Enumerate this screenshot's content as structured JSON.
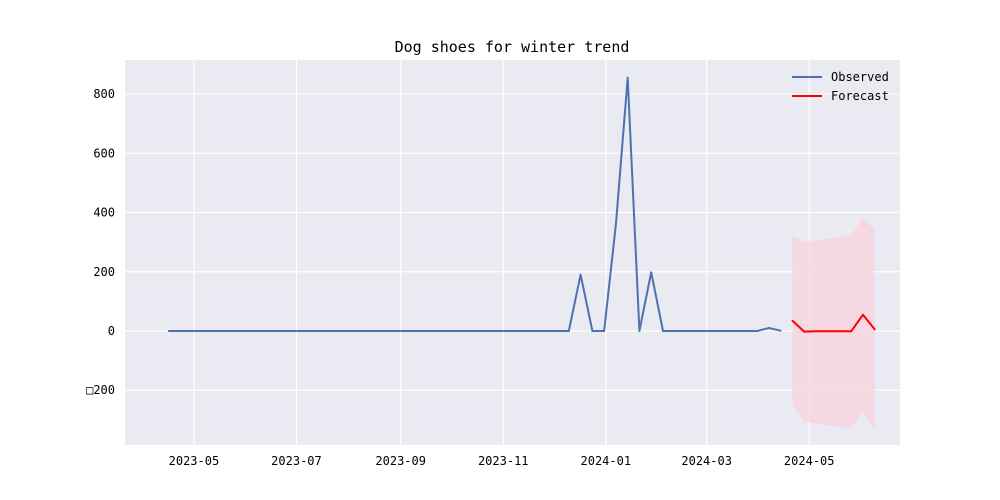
{
  "chart_data": {
    "type": "line",
    "title": "Dog shoes for winter trend",
    "xlabel": "",
    "ylabel": "",
    "x_type": "date",
    "xlim": [
      "2023-03-21",
      "2024-06-24"
    ],
    "ylim": [
      -385,
      915
    ],
    "x_ticks": [
      {
        "date": "2023-05-01",
        "label": "2023-05"
      },
      {
        "date": "2023-07-01",
        "label": "2023-07"
      },
      {
        "date": "2023-09-01",
        "label": "2023-09"
      },
      {
        "date": "2023-11-01",
        "label": "2023-11"
      },
      {
        "date": "2024-01-01",
        "label": "2024-01"
      },
      {
        "date": "2024-03-01",
        "label": "2024-03"
      },
      {
        "date": "2024-05-01",
        "label": "2024-05"
      }
    ],
    "y_ticks": [
      {
        "value": -200,
        "label": "□200"
      },
      {
        "value": 0,
        "label": "0"
      },
      {
        "value": 200,
        "label": "200"
      },
      {
        "value": 400,
        "label": "400"
      },
      {
        "value": 600,
        "label": "600"
      },
      {
        "value": 800,
        "label": "800"
      }
    ],
    "grid": true,
    "legend": {
      "position": "top-right"
    },
    "series": [
      {
        "name": "Observed",
        "color": "#4c72b0",
        "points": [
          {
            "x": "2023-04-16",
            "y": 0
          },
          {
            "x": "2023-04-23",
            "y": 0
          },
          {
            "x": "2023-04-30",
            "y": 0
          },
          {
            "x": "2023-05-07",
            "y": 0
          },
          {
            "x": "2023-05-14",
            "y": 0
          },
          {
            "x": "2023-05-21",
            "y": 0
          },
          {
            "x": "2023-05-28",
            "y": 0
          },
          {
            "x": "2023-06-04",
            "y": 0
          },
          {
            "x": "2023-06-11",
            "y": 0
          },
          {
            "x": "2023-06-18",
            "y": 0
          },
          {
            "x": "2023-06-25",
            "y": 0
          },
          {
            "x": "2023-07-02",
            "y": 0
          },
          {
            "x": "2023-07-09",
            "y": 0
          },
          {
            "x": "2023-07-16",
            "y": 0
          },
          {
            "x": "2023-07-23",
            "y": 0
          },
          {
            "x": "2023-07-30",
            "y": 0
          },
          {
            "x": "2023-08-06",
            "y": 0
          },
          {
            "x": "2023-08-13",
            "y": 0
          },
          {
            "x": "2023-08-20",
            "y": 0
          },
          {
            "x": "2023-08-27",
            "y": 0
          },
          {
            "x": "2023-09-03",
            "y": 0
          },
          {
            "x": "2023-09-10",
            "y": 0
          },
          {
            "x": "2023-09-17",
            "y": 0
          },
          {
            "x": "2023-09-24",
            "y": 0
          },
          {
            "x": "2023-10-01",
            "y": 0
          },
          {
            "x": "2023-10-08",
            "y": 0
          },
          {
            "x": "2023-10-15",
            "y": 0
          },
          {
            "x": "2023-10-22",
            "y": 0
          },
          {
            "x": "2023-10-29",
            "y": 0
          },
          {
            "x": "2023-11-05",
            "y": 0
          },
          {
            "x": "2023-11-12",
            "y": 0
          },
          {
            "x": "2023-11-19",
            "y": 0
          },
          {
            "x": "2023-11-26",
            "y": 0
          },
          {
            "x": "2023-12-03",
            "y": 0
          },
          {
            "x": "2023-12-10",
            "y": 0
          },
          {
            "x": "2023-12-17",
            "y": 190
          },
          {
            "x": "2023-12-24",
            "y": 0
          },
          {
            "x": "2023-12-31",
            "y": 0
          },
          {
            "x": "2024-01-07",
            "y": 360
          },
          {
            "x": "2024-01-14",
            "y": 855
          },
          {
            "x": "2024-01-21",
            "y": 0
          },
          {
            "x": "2024-01-28",
            "y": 198
          },
          {
            "x": "2024-02-04",
            "y": 0
          },
          {
            "x": "2024-02-11",
            "y": 0
          },
          {
            "x": "2024-02-18",
            "y": 0
          },
          {
            "x": "2024-02-25",
            "y": 0
          },
          {
            "x": "2024-03-03",
            "y": 0
          },
          {
            "x": "2024-03-10",
            "y": 0
          },
          {
            "x": "2024-03-17",
            "y": 0
          },
          {
            "x": "2024-03-24",
            "y": 0
          },
          {
            "x": "2024-03-31",
            "y": 0
          },
          {
            "x": "2024-04-07",
            "y": 10
          },
          {
            "x": "2024-04-14",
            "y": 1
          }
        ]
      },
      {
        "name": "Forecast",
        "color": "#ff0000",
        "points": [
          {
            "x": "2024-04-21",
            "y": 35
          },
          {
            "x": "2024-04-28",
            "y": -2
          },
          {
            "x": "2024-05-05",
            "y": -1
          },
          {
            "x": "2024-05-12",
            "y": -1
          },
          {
            "x": "2024-05-19",
            "y": -1
          },
          {
            "x": "2024-05-26",
            "y": -1
          },
          {
            "x": "2024-06-02",
            "y": 55
          },
          {
            "x": "2024-06-09",
            "y": 5
          }
        ],
        "confidence_band": {
          "color": "#f8d2dc",
          "upper": [
            322,
            302,
            307,
            312,
            317,
            322,
            385,
            340
          ],
          "lower": [
            -248,
            -308,
            -313,
            -318,
            -323,
            -328,
            -272,
            -335
          ]
        }
      }
    ]
  }
}
